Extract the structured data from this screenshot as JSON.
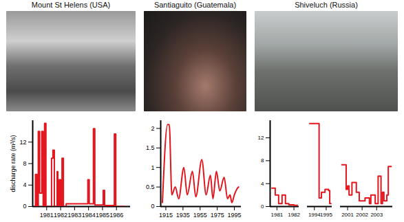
{
  "chart_data": [
    {
      "type": "line",
      "title": "Mount St Helens (USA)",
      "ylabel": "discharge rate (m³/s)",
      "line_style": "step",
      "color": "#e3141b",
      "xlim": [
        1980,
        1987
      ],
      "xticks": [
        1981,
        1982,
        1983,
        1984,
        1985,
        1986
      ],
      "ylim": [
        0,
        16
      ],
      "yticks": [
        0,
        4,
        8,
        12
      ],
      "x": [
        1980.1,
        1980.2,
        1980.3,
        1980.4,
        1980.5,
        1980.65,
        1980.75,
        1980.85,
        1980.95,
        1981.35,
        1981.45,
        1981.55,
        1981.75,
        1981.8,
        1981.9,
        1982.0,
        1982.1,
        1982.2,
        1982.4,
        1983.95,
        1984.05,
        1984.35,
        1984.45,
        1985.05,
        1985.15,
        1985.85,
        1985.95,
        1986.6
      ],
      "values": [
        0,
        6,
        0,
        14,
        2.5,
        14,
        0,
        15.5,
        0,
        9,
        10.5,
        0,
        6.5,
        0,
        5,
        0,
        9,
        0,
        0.5,
        5,
        0.5,
        14.5,
        0.3,
        3,
        0.2,
        13.5,
        0,
        0
      ]
    },
    {
      "type": "line",
      "title": "Santiaguito (Guatemala)",
      "line_style": "smooth",
      "color": "#e3141b",
      "xlim": [
        1909,
        2003
      ],
      "xticks": [
        1915,
        1935,
        1955,
        1975,
        1995
      ],
      "ylim": [
        0,
        2.2
      ],
      "yticks": [
        0,
        0.5,
        1,
        1.5,
        2
      ],
      "x": [
        1911,
        1917,
        1919,
        1922,
        1926,
        1930,
        1936,
        1940,
        1946,
        1950,
        1957,
        1962,
        1967,
        1970,
        1974,
        1978,
        1983,
        1987,
        1990,
        1992,
        1995,
        1998,
        2000
      ],
      "values": [
        0.1,
        2.1,
        2.1,
        0.3,
        0.5,
        0.2,
        1.0,
        0.3,
        0.9,
        0.25,
        1.2,
        0.3,
        0.8,
        0.2,
        0.9,
        0.4,
        0.75,
        0.2,
        0.3,
        0.1,
        0.3,
        0.45,
        0.5
      ]
    },
    {
      "type": "line",
      "title": "Shiveluch (Russia)",
      "line_style": "step",
      "color": "#e3141b",
      "ylim": [
        0,
        15
      ],
      "yticks": [
        0,
        4,
        8,
        12
      ],
      "segments": [
        {
          "xlim": [
            1980.6,
            1982.3
          ],
          "xticks": [
            1981,
            1982
          ],
          "x": [
            1980.7,
            1980.9,
            1981.1,
            1981.3,
            1981.5,
            1981.7,
            1982.0,
            1982.2
          ],
          "values": [
            3.2,
            2,
            0.5,
            2,
            0.5,
            0.3,
            0.2,
            0.2
          ]
        },
        {
          "xlim": [
            1993.4,
            1995.5
          ],
          "xticks": [
            1994,
            1995
          ],
          "x": [
            1993.6,
            1994.4,
            1994.6,
            1994.9,
            1995.2,
            1995.3,
            1995.4
          ],
          "values": [
            14.5,
            1.5,
            2.5,
            3,
            2.8,
            0.5,
            0.5
          ]
        },
        {
          "xlim": [
            2000.5,
            2004.1
          ],
          "xticks": [
            2001,
            2002,
            2003
          ],
          "x": [
            2000.6,
            2000.9,
            2001.0,
            2001.1,
            2001.3,
            2001.6,
            2001.8,
            2002.2,
            2002.5,
            2002.6,
            2002.9,
            2003.1,
            2003.3,
            2003.4,
            2003.5,
            2003.7,
            2003.8,
            2004.0
          ],
          "values": [
            7.3,
            3,
            3.6,
            2,
            4.2,
            2.5,
            1,
            1.5,
            0.5,
            2,
            0.5,
            5.3,
            0.5,
            2.5,
            1,
            2,
            7,
            7
          ]
        }
      ]
    }
  ]
}
